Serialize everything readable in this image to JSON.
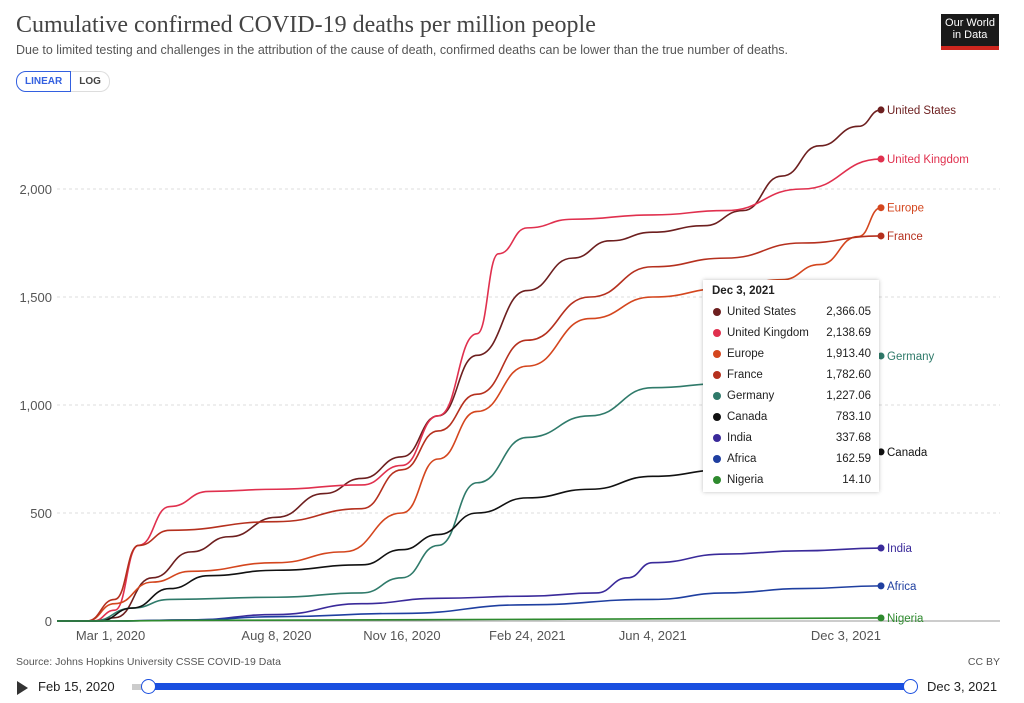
{
  "header": {
    "title": "Cumulative confirmed COVID-19 deaths per million people",
    "subtitle": "Due to limited testing and challenges in the attribution of the cause of death, confirmed deaths can be lower than the true number of deaths.",
    "logo_text": "Our World in Data",
    "scale_linear": "LINEAR",
    "scale_log": "LOG"
  },
  "footer": {
    "source": "Source: Johns Hopkins University CSSE COVID-19 Data",
    "license": "CC BY"
  },
  "timeline": {
    "start": "Feb 15, 2020",
    "end": "Dec 3, 2021",
    "play_icon": "play-icon",
    "accent": "#1a4fe0"
  },
  "tooltip": {
    "title": "Dec 3, 2021",
    "rows": [
      {
        "name": "United States",
        "value": "2,366.05"
      },
      {
        "name": "United Kingdom",
        "value": "2,138.69"
      },
      {
        "name": "Europe",
        "value": "1,913.40"
      },
      {
        "name": "France",
        "value": "1,782.60"
      },
      {
        "name": "Germany",
        "value": "1,227.06"
      },
      {
        "name": "Canada",
        "value": "783.10"
      },
      {
        "name": "India",
        "value": "337.68"
      },
      {
        "name": "Africa",
        "value": "162.59"
      },
      {
        "name": "Nigeria",
        "value": "14.10"
      }
    ]
  },
  "chart_data": {
    "type": "line",
    "title": "Cumulative confirmed COVID-19 deaths per million people",
    "xlim": [
      "2020-02-15",
      "2021-12-03"
    ],
    "ylim": [
      0,
      2400
    ],
    "grid": true,
    "legend": "right-end labels",
    "yticks": [
      0,
      500,
      1000,
      1500,
      2000
    ],
    "ytick_labels": [
      "0",
      "500",
      "1,000",
      "1,500",
      "2,000"
    ],
    "xticks": [
      "2020-03-01",
      "2020-08-08",
      "2020-11-16",
      "2021-02-24",
      "2021-06-04",
      "2021-12-03"
    ],
    "xtick_labels": [
      "Mar 1, 2020",
      "Aug 8, 2020",
      "Nov 16, 2020",
      "Feb 24, 2021",
      "Jun 4, 2021",
      "Dec 3, 2021"
    ],
    "series": [
      {
        "name": "United States",
        "color": "#6d1f1f",
        "points": [
          [
            "2020-02-15",
            0
          ],
          [
            "2020-03-15",
            0
          ],
          [
            "2020-04-01",
            15
          ],
          [
            "2020-05-01",
            200
          ],
          [
            "2020-06-01",
            320
          ],
          [
            "2020-07-01",
            390
          ],
          [
            "2020-08-08",
            480
          ],
          [
            "2020-09-15",
            590
          ],
          [
            "2020-10-15",
            660
          ],
          [
            "2020-11-16",
            760
          ],
          [
            "2020-12-15",
            950
          ],
          [
            "2021-01-15",
            1230
          ],
          [
            "2021-02-24",
            1530
          ],
          [
            "2021-04-01",
            1680
          ],
          [
            "2021-05-01",
            1760
          ],
          [
            "2021-06-04",
            1800
          ],
          [
            "2021-07-15",
            1830
          ],
          [
            "2021-08-15",
            1900
          ],
          [
            "2021-09-15",
            2060
          ],
          [
            "2021-10-15",
            2200
          ],
          [
            "2021-11-15",
            2290
          ],
          [
            "2021-12-03",
            2366.05
          ]
        ]
      },
      {
        "name": "United Kingdom",
        "color": "#e0304e",
        "points": [
          [
            "2020-02-15",
            0
          ],
          [
            "2020-03-15",
            0
          ],
          [
            "2020-04-01",
            50
          ],
          [
            "2020-04-20",
            350
          ],
          [
            "2020-05-15",
            530
          ],
          [
            "2020-06-15",
            600
          ],
          [
            "2020-08-08",
            610
          ],
          [
            "2020-10-15",
            630
          ],
          [
            "2020-11-16",
            720
          ],
          [
            "2020-12-15",
            950
          ],
          [
            "2021-01-15",
            1330
          ],
          [
            "2021-02-01",
            1700
          ],
          [
            "2021-02-24",
            1820
          ],
          [
            "2021-04-01",
            1860
          ],
          [
            "2021-06-04",
            1880
          ],
          [
            "2021-08-01",
            1900
          ],
          [
            "2021-10-01",
            2000
          ],
          [
            "2021-12-03",
            2138.69
          ]
        ]
      },
      {
        "name": "Europe",
        "color": "#d4461e",
        "points": [
          [
            "2020-02-15",
            0
          ],
          [
            "2020-03-10",
            0
          ],
          [
            "2020-04-01",
            80
          ],
          [
            "2020-05-01",
            180
          ],
          [
            "2020-06-01",
            230
          ],
          [
            "2020-08-08",
            270
          ],
          [
            "2020-10-01",
            320
          ],
          [
            "2020-11-16",
            500
          ],
          [
            "2020-12-15",
            750
          ],
          [
            "2021-01-15",
            970
          ],
          [
            "2021-02-24",
            1180
          ],
          [
            "2021-04-15",
            1400
          ],
          [
            "2021-06-04",
            1500
          ],
          [
            "2021-08-01",
            1540
          ],
          [
            "2021-09-15",
            1580
          ],
          [
            "2021-10-15",
            1650
          ],
          [
            "2021-11-15",
            1780
          ],
          [
            "2021-12-03",
            1913.4
          ]
        ]
      },
      {
        "name": "France",
        "color": "#b5301e",
        "points": [
          [
            "2020-02-15",
            0
          ],
          [
            "2020-03-10",
            0
          ],
          [
            "2020-04-01",
            100
          ],
          [
            "2020-04-20",
            350
          ],
          [
            "2020-05-15",
            420
          ],
          [
            "2020-08-08",
            460
          ],
          [
            "2020-10-15",
            520
          ],
          [
            "2020-11-16",
            700
          ],
          [
            "2020-12-15",
            880
          ],
          [
            "2021-01-15",
            1050
          ],
          [
            "2021-02-24",
            1300
          ],
          [
            "2021-04-15",
            1500
          ],
          [
            "2021-06-04",
            1640
          ],
          [
            "2021-08-01",
            1680
          ],
          [
            "2021-10-01",
            1750
          ],
          [
            "2021-12-03",
            1782.6
          ]
        ]
      },
      {
        "name": "Germany",
        "color": "#2f7a6a",
        "points": [
          [
            "2020-02-15",
            0
          ],
          [
            "2020-03-15",
            0
          ],
          [
            "2020-04-15",
            60
          ],
          [
            "2020-05-15",
            100
          ],
          [
            "2020-08-08",
            110
          ],
          [
            "2020-10-15",
            130
          ],
          [
            "2020-11-16",
            200
          ],
          [
            "2020-12-15",
            350
          ],
          [
            "2021-01-15",
            640
          ],
          [
            "2021-02-24",
            850
          ],
          [
            "2021-04-15",
            950
          ],
          [
            "2021-06-04",
            1080
          ],
          [
            "2021-08-01",
            1100
          ],
          [
            "2021-10-01",
            1130
          ],
          [
            "2021-12-03",
            1227.06
          ]
        ]
      },
      {
        "name": "Canada",
        "color": "#111111",
        "points": [
          [
            "2020-02-15",
            0
          ],
          [
            "2020-03-20",
            0
          ],
          [
            "2020-04-15",
            60
          ],
          [
            "2020-05-15",
            150
          ],
          [
            "2020-06-15",
            210
          ],
          [
            "2020-08-08",
            235
          ],
          [
            "2020-10-15",
            260
          ],
          [
            "2020-11-16",
            330
          ],
          [
            "2020-12-15",
            400
          ],
          [
            "2021-01-15",
            500
          ],
          [
            "2021-02-24",
            570
          ],
          [
            "2021-04-15",
            610
          ],
          [
            "2021-06-04",
            670
          ],
          [
            "2021-08-01",
            700
          ],
          [
            "2021-10-01",
            730
          ],
          [
            "2021-12-03",
            783.1
          ]
        ]
      },
      {
        "name": "India",
        "color": "#3a2a9a",
        "points": [
          [
            "2020-02-15",
            0
          ],
          [
            "2020-04-01",
            0
          ],
          [
            "2020-06-01",
            5
          ],
          [
            "2020-08-08",
            30
          ],
          [
            "2020-10-15",
            80
          ],
          [
            "2020-12-15",
            105
          ],
          [
            "2021-02-24",
            115
          ],
          [
            "2021-04-20",
            130
          ],
          [
            "2021-05-15",
            200
          ],
          [
            "2021-06-04",
            270
          ],
          [
            "2021-08-01",
            310
          ],
          [
            "2021-10-01",
            325
          ],
          [
            "2021-12-03",
            337.68
          ]
        ]
      },
      {
        "name": "Africa",
        "color": "#1f3fa0",
        "points": [
          [
            "2020-02-15",
            0
          ],
          [
            "2020-04-01",
            0
          ],
          [
            "2020-06-01",
            5
          ],
          [
            "2020-08-08",
            20
          ],
          [
            "2020-11-16",
            35
          ],
          [
            "2021-02-24",
            75
          ],
          [
            "2021-06-04",
            100
          ],
          [
            "2021-08-01",
            130
          ],
          [
            "2021-10-01",
            150
          ],
          [
            "2021-12-03",
            162.59
          ]
        ]
      },
      {
        "name": "Nigeria",
        "color": "#2e8a2e",
        "points": [
          [
            "2020-02-15",
            0
          ],
          [
            "2020-04-01",
            0
          ],
          [
            "2020-06-01",
            3
          ],
          [
            "2020-12-01",
            6
          ],
          [
            "2021-06-04",
            10
          ],
          [
            "2021-12-03",
            14.1
          ]
        ]
      }
    ]
  }
}
